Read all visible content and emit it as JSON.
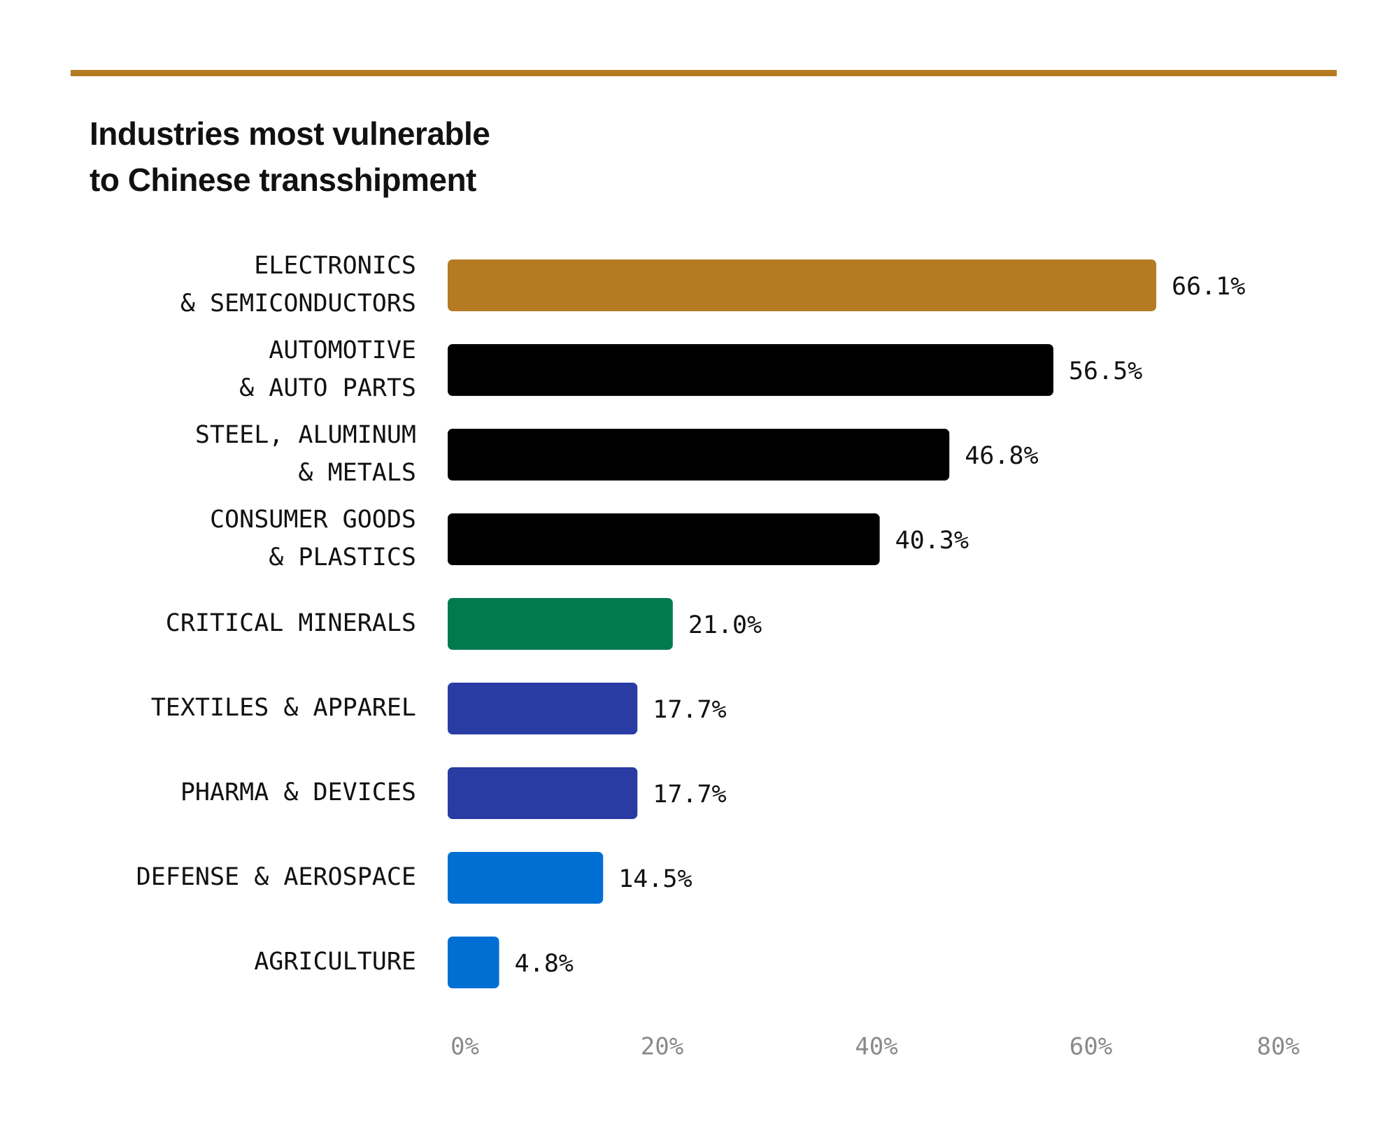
{
  "chart_data": {
    "type": "bar",
    "orientation": "horizontal",
    "title": [
      "Industries most vulnerable",
      "to Chinese transshipment"
    ],
    "xlabel": "",
    "ylabel": "",
    "xlim": [
      0,
      80
    ],
    "ticks": [
      {
        "value": 0,
        "label": "0%"
      },
      {
        "value": 20,
        "label": "20%"
      },
      {
        "value": 40,
        "label": "40%"
      },
      {
        "value": 60,
        "label": "60%"
      },
      {
        "value": 80,
        "label": "80%"
      }
    ],
    "grid": false,
    "legend": "none",
    "categories": [
      {
        "lines": [
          "ELECTRONICS",
          "& SEMICONDUCTORS"
        ],
        "value": 66.1,
        "value_label": "66.1%",
        "color": "#b57b22"
      },
      {
        "lines": [
          "AUTOMOTIVE ",
          "& AUTO PARTS"
        ],
        "value": 56.5,
        "value_label": "56.5%",
        "color": "#000000"
      },
      {
        "lines": [
          "STEEL, ALUMINUM",
          "& METALS"
        ],
        "value": 46.8,
        "value_label": "46.8%",
        "color": "#000000"
      },
      {
        "lines": [
          "CONSUMER GOODS",
          "& PLASTICS"
        ],
        "value": 40.3,
        "value_label": "40.3%",
        "color": "#000000"
      },
      {
        "lines": [
          "CRITICAL MINERALS"
        ],
        "value": 21.0,
        "value_label": "21.0%",
        "color": "#007a4e"
      },
      {
        "lines": [
          "TEXTILES & APPAREL"
        ],
        "value": 17.7,
        "value_label": "17.7%",
        "color": "#283ca3"
      },
      {
        "lines": [
          "PHARMA & DEVICES"
        ],
        "value": 17.7,
        "value_label": "17.7%",
        "color": "#283ca3"
      },
      {
        "lines": [
          "DEFENSE & AEROSPACE"
        ],
        "value": 14.5,
        "value_label": "14.5%",
        "color": "#006fd3"
      },
      {
        "lines": [
          "AGRICULTURE"
        ],
        "value": 4.8,
        "value_label": "4.8%",
        "color": "#006fd3"
      }
    ],
    "colors": {
      "accent_rule": "#b57b22",
      "label_text": "#111111",
      "tick_text": "#8a8a8a"
    }
  }
}
